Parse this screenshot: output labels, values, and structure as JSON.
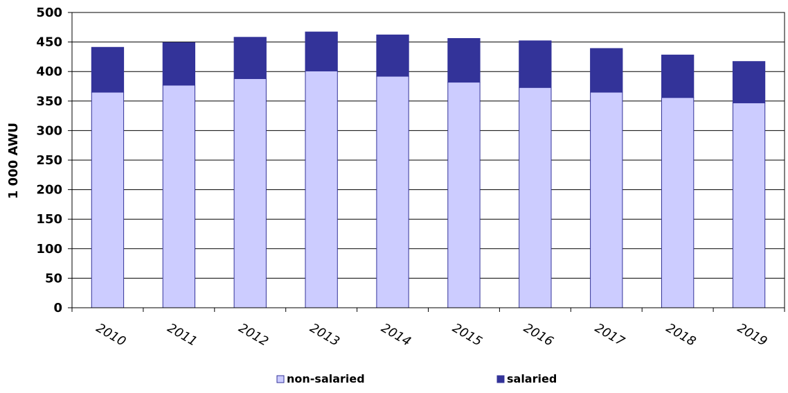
{
  "chart_data": {
    "type": "bar",
    "stacked": true,
    "categories": [
      "2010",
      "2011",
      "2012",
      "2013",
      "2014",
      "2015",
      "2016",
      "2017",
      "2018",
      "2019"
    ],
    "series": [
      {
        "name": "non-salaried",
        "color": "#ccccff",
        "values": [
          365,
          377,
          388,
          401,
          392,
          382,
          373,
          365,
          356,
          347
        ]
      },
      {
        "name": "salaried",
        "color": "#333399",
        "values": [
          76,
          72,
          70,
          66,
          70,
          74,
          79,
          74,
          72,
          70
        ]
      }
    ],
    "totals": [
      441,
      449,
      458,
      467,
      462,
      456,
      452,
      439,
      428,
      417
    ],
    "title": "",
    "xlabel": "",
    "ylabel": "1 000 AWU",
    "ylim": [
      0,
      500
    ],
    "yticks": [
      "0",
      "50",
      "100",
      "150",
      "200",
      "250",
      "300",
      "350",
      "400",
      "450",
      "500"
    ],
    "grid": true,
    "legend": "bottom"
  }
}
